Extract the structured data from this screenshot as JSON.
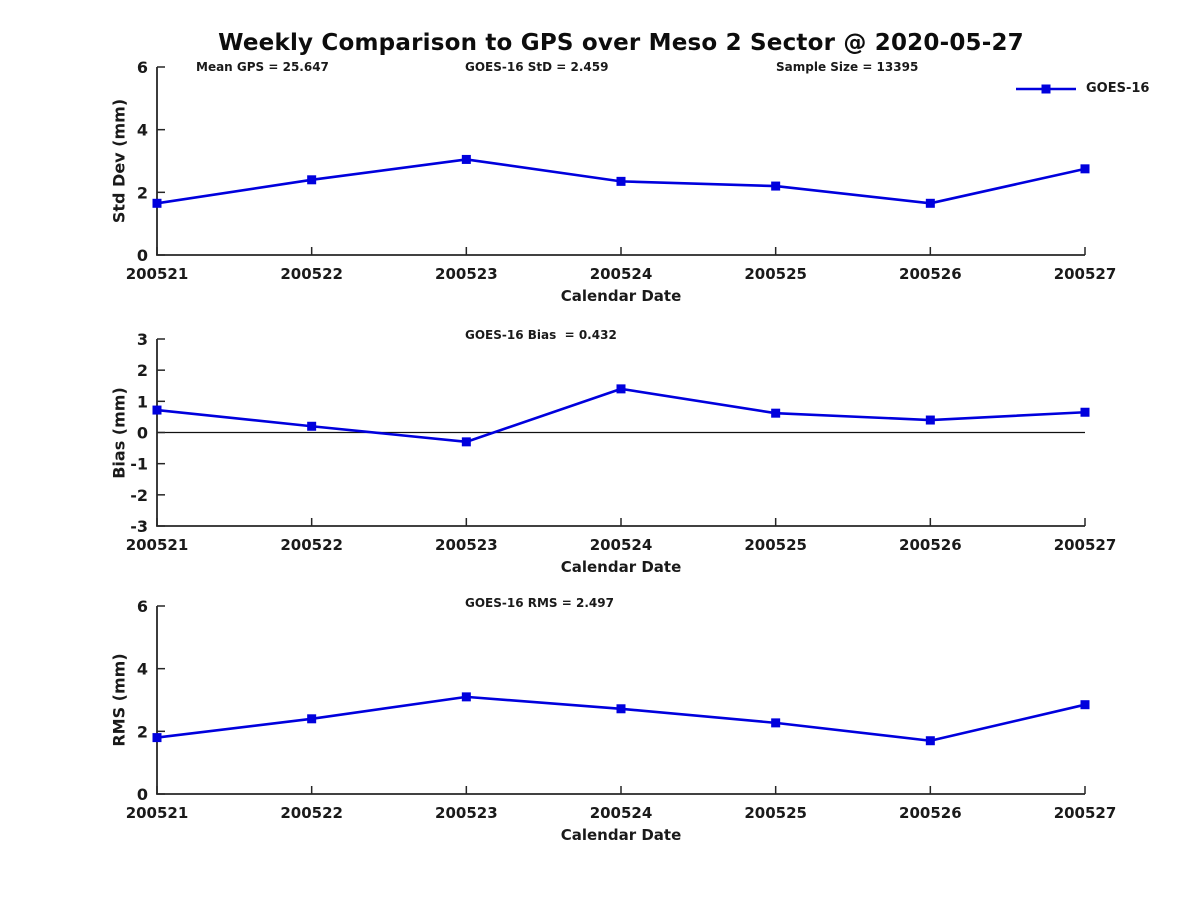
{
  "figure": {
    "title": "Weekly Comparison to GPS over Meso 2 Sector @ 2020-05-27"
  },
  "legend": {
    "label": "GOES-16",
    "line_color": "#0000dd",
    "marker": "square"
  },
  "chart_data": [
    {
      "type": "line",
      "title": "",
      "ylabel": "Std Dev (mm)",
      "xlabel": "Calendar Date",
      "categories": [
        "200521",
        "200522",
        "200523",
        "200524",
        "200525",
        "200526",
        "200527"
      ],
      "series": [
        {
          "name": "GOES-16",
          "color": "#0000dd",
          "marker": "square",
          "values": [
            1.65,
            2.4,
            3.05,
            2.35,
            2.2,
            1.65,
            2.75
          ]
        }
      ],
      "ylim": [
        0,
        6
      ],
      "yticks": [
        0,
        2,
        4,
        6
      ],
      "grid": false,
      "zero_line": false,
      "legend_position": "top-right",
      "annotations": [
        "Mean GPS = 25.647",
        "GOES-16 StD = 2.459",
        "Sample Size = 13395"
      ]
    },
    {
      "type": "line",
      "title": "",
      "ylabel": "Bias (mm)",
      "xlabel": "Calendar Date",
      "categories": [
        "200521",
        "200522",
        "200523",
        "200524",
        "200525",
        "200526",
        "200527"
      ],
      "series": [
        {
          "name": "GOES-16",
          "color": "#0000dd",
          "marker": "square",
          "values": [
            0.72,
            0.2,
            -0.3,
            1.4,
            0.62,
            0.4,
            0.65
          ]
        }
      ],
      "ylim": [
        -3,
        3
      ],
      "yticks": [
        -3,
        -2,
        -1,
        0,
        1,
        2,
        3
      ],
      "grid": false,
      "zero_line": true,
      "annotations": [
        "GOES-16 Bias  = 0.432"
      ]
    },
    {
      "type": "line",
      "title": "",
      "ylabel": "RMS (mm)",
      "xlabel": "Calendar Date",
      "categories": [
        "200521",
        "200522",
        "200523",
        "200524",
        "200525",
        "200526",
        "200527"
      ],
      "series": [
        {
          "name": "GOES-16",
          "color": "#0000dd",
          "marker": "square",
          "values": [
            1.8,
            2.4,
            3.1,
            2.72,
            2.27,
            1.7,
            2.85
          ]
        }
      ],
      "ylim": [
        0,
        6
      ],
      "yticks": [
        0,
        2,
        4,
        6
      ],
      "grid": false,
      "zero_line": false,
      "annotations": [
        "GOES-16 RMS = 2.497"
      ]
    }
  ]
}
